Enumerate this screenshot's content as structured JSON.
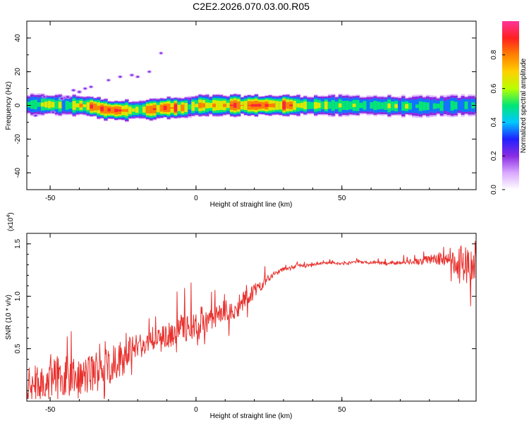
{
  "title": "C2E2.2026.070.03.00.R05",
  "colors": {
    "snr_line": "#e8302c",
    "colormap": [
      "#ffffff",
      "#d9a8ff",
      "#8a2be2",
      "#2020ff",
      "#00c8ff",
      "#00e676",
      "#b8ff00",
      "#ffd000",
      "#ff8000",
      "#ff2020",
      "#ff3399"
    ]
  },
  "chart_data": [
    {
      "type": "heatmap",
      "title": "C2E2.2026.070.03.00.R05",
      "xlabel": "Height of straight line (km)",
      "ylabel": "Frequency (Hz)",
      "xlim": [
        -58,
        96
      ],
      "ylim": [
        -50,
        50
      ],
      "xticks": [
        -50,
        0,
        50
      ],
      "xtick_labels": [
        "-50",
        "0",
        "50"
      ],
      "yticks": [
        -40,
        -20,
        0,
        20,
        40
      ],
      "ytick_labels": [
        "-40",
        "-20",
        "0",
        "20",
        "40"
      ],
      "colorbar": {
        "label": "Normalized spectral amplitude",
        "range": [
          0,
          1
        ],
        "ticks": [
          0,
          0.2,
          0.4,
          0.6,
          0.8
        ],
        "tick_labels": [
          "0.0",
          "0.2",
          "0.4",
          "0.6",
          "0.8"
        ]
      },
      "ridge": {
        "x": [
          -58,
          -50,
          -45,
          -40,
          -35,
          -32,
          -28,
          -24,
          -20,
          -16,
          -12,
          -8,
          -5,
          -3,
          0,
          5,
          10,
          20,
          30,
          40,
          50,
          60,
          70,
          80,
          90,
          96
        ],
        "center_hz": [
          0.5,
          0.5,
          0,
          0,
          -1,
          -2.5,
          -3,
          -3,
          -2.5,
          -2.5,
          -1.5,
          -1.5,
          -1.5,
          -1,
          0,
          0,
          0,
          0,
          0,
          0,
          0,
          0,
          -0.5,
          -0.5,
          0,
          0
        ],
        "peak_amplitude": [
          0.55,
          0.75,
          0.6,
          0.8,
          0.9,
          0.95,
          0.95,
          0.9,
          0.7,
          0.95,
          0.98,
          0.98,
          0.9,
          0.6,
          0.85,
          0.9,
          0.92,
          0.95,
          0.95,
          0.7,
          0.7,
          0.6,
          0.65,
          0.55,
          0.6,
          0.5
        ]
      },
      "scatter_blobs": {
        "x": [
          -55,
          -52,
          -49,
          -46,
          -44,
          -42,
          -40,
          -38,
          -36,
          -30,
          -26,
          -22,
          -20,
          -16,
          -12
        ],
        "y": [
          -6,
          5,
          -4,
          4,
          5,
          9,
          8,
          10,
          11,
          15,
          17,
          18,
          17,
          20,
          31
        ],
        "amplitude": [
          0.15,
          0.1,
          0.12,
          0.2,
          0.2,
          0.1,
          0.15,
          0.08,
          0.06,
          0.05,
          0.08,
          0.1,
          0.07,
          0.05,
          0.04
        ]
      }
    },
    {
      "type": "line",
      "xlabel": "Height of straight line (km)",
      "ylabel": "SNR (10 * v/v)",
      "scale_label": "(x10",
      "scale_exponent": "4",
      "xlim": [
        -58,
        96
      ],
      "ylim": [
        0,
        1.6
      ],
      "xticks": [
        -50,
        0,
        50
      ],
      "xtick_labels": [
        "-50",
        "0",
        "50"
      ],
      "yticks": [
        0.5,
        1.0,
        1.5
      ],
      "ytick_labels": [
        "0.5",
        "1.0",
        "1.5"
      ],
      "series": [
        {
          "trend_x": [
            -58,
            -50,
            -45,
            -40,
            -35,
            -30,
            -25,
            -20,
            -15,
            -10,
            -5,
            0,
            5,
            10,
            15,
            20,
            25,
            30,
            35,
            40,
            45,
            50,
            55,
            60,
            65,
            70,
            75,
            80,
            85,
            88,
            90,
            92,
            94,
            96
          ],
          "trend_y": [
            0.12,
            0.22,
            0.25,
            0.2,
            0.28,
            0.35,
            0.42,
            0.52,
            0.58,
            0.62,
            0.7,
            0.72,
            0.78,
            0.85,
            0.92,
            1.05,
            1.18,
            1.26,
            1.29,
            1.3,
            1.32,
            1.31,
            1.33,
            1.32,
            1.31,
            1.32,
            1.33,
            1.35,
            1.37,
            1.35,
            1.3,
            1.33,
            1.3,
            1.28
          ],
          "noise_amplitude": [
            0.25,
            0.3,
            0.32,
            0.3,
            0.35,
            0.32,
            0.3,
            0.22,
            0.16,
            0.2,
            0.25,
            0.2,
            0.18,
            0.2,
            0.18,
            0.12,
            0.06,
            0.03,
            0.03,
            0.02,
            0.02,
            0.02,
            0.02,
            0.02,
            0.03,
            0.03,
            0.05,
            0.07,
            0.12,
            0.2,
            0.28,
            0.3,
            0.25,
            0.2
          ]
        }
      ]
    }
  ]
}
